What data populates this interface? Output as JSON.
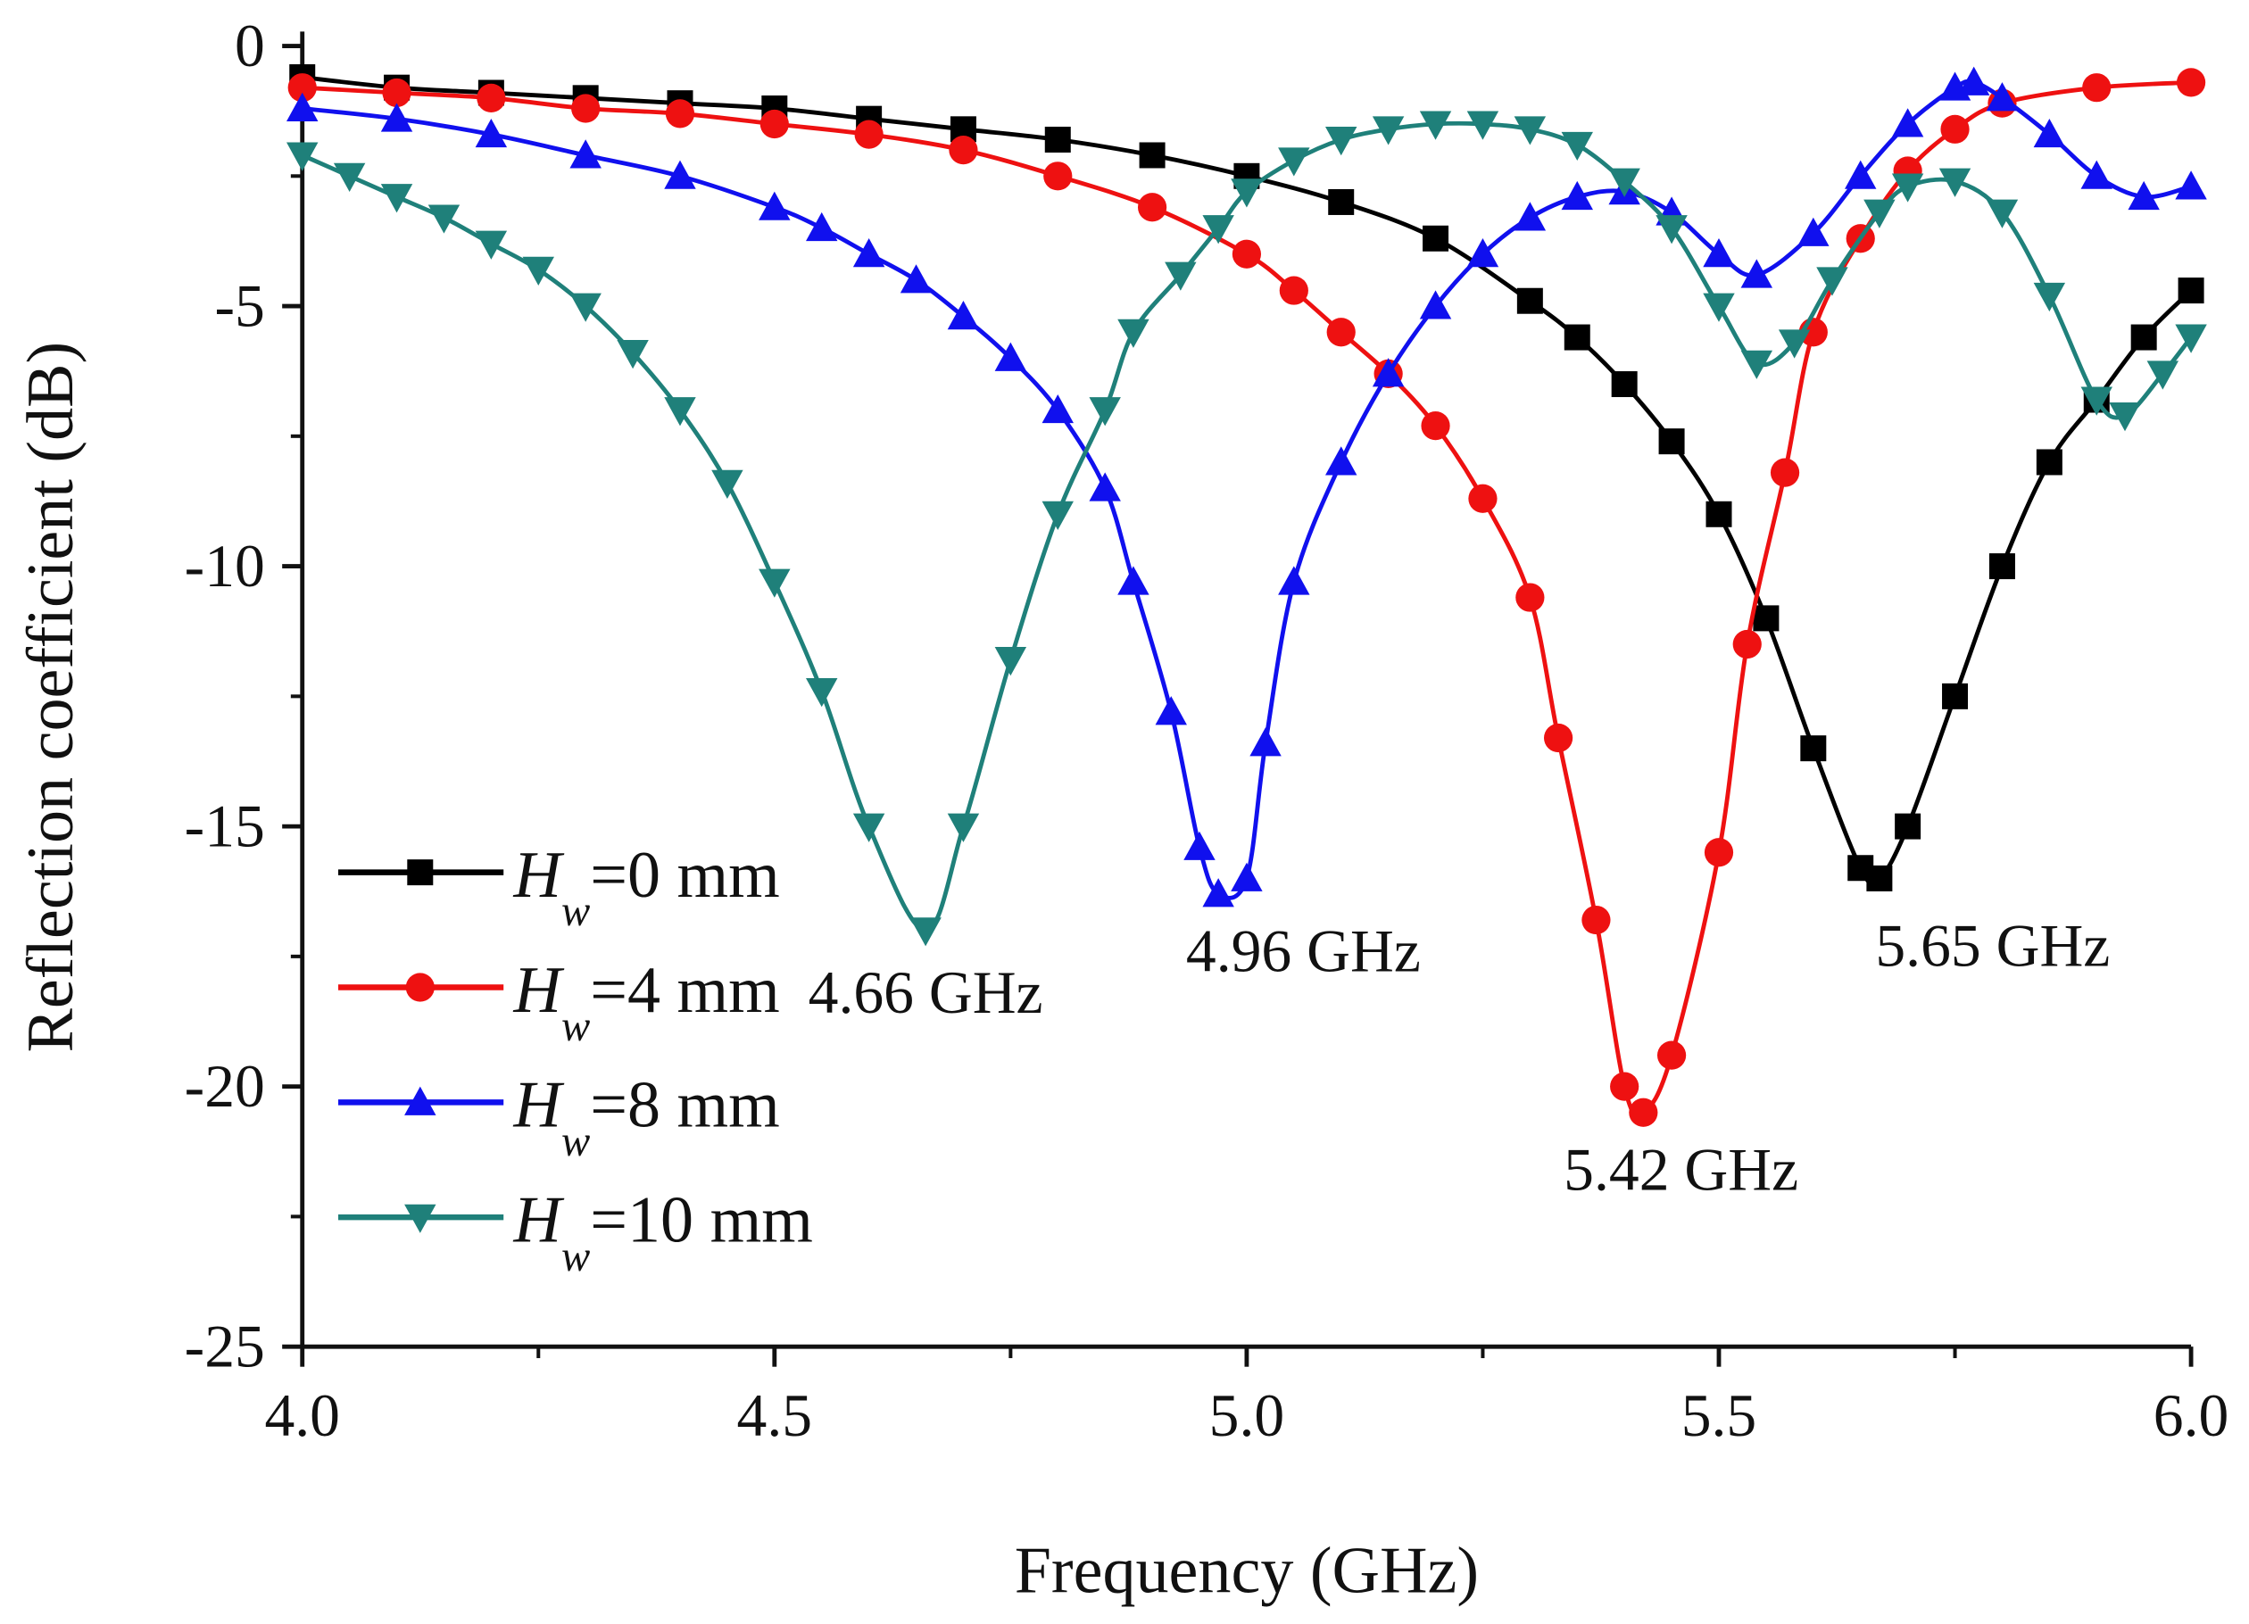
{
  "chart_data": {
    "type": "line",
    "title": "",
    "xlabel": "Frequency (GHz)",
    "ylabel": "Reflection coefficient (dB)",
    "xlim": [
      4.0,
      6.0
    ],
    "ylim": [
      -25,
      0
    ],
    "xticks": [
      "4.0",
      "4.5",
      "5.0",
      "5.5",
      "6.0"
    ],
    "xtick_values": [
      4.0,
      4.5,
      5.0,
      5.5,
      6.0
    ],
    "yticks": [
      "0",
      "-5",
      "-10",
      "-15",
      "-20",
      "-25"
    ],
    "ytick_values": [
      0,
      -5,
      -10,
      -15,
      -20,
      -25
    ],
    "grid": false,
    "legend_position": "bottom-left",
    "series": [
      {
        "name": "Hw=0 mm",
        "legend_var": "H",
        "legend_sub": "w",
        "legend_rest": "=0 mm",
        "color": "#000000",
        "marker": "square",
        "x": [
          4.0,
          4.1,
          4.2,
          4.3,
          4.4,
          4.5,
          4.6,
          4.7,
          4.8,
          4.9,
          5.0,
          5.1,
          5.2,
          5.3,
          5.35,
          5.4,
          5.45,
          5.5,
          5.55,
          5.6,
          5.65,
          5.67,
          5.7,
          5.75,
          5.8,
          5.85,
          5.9,
          5.95,
          6.0
        ],
        "y": [
          -0.6,
          -0.8,
          -0.9,
          -1.0,
          -1.1,
          -1.2,
          -1.4,
          -1.6,
          -1.8,
          -2.1,
          -2.5,
          -3.0,
          -3.7,
          -4.9,
          -5.6,
          -6.5,
          -7.6,
          -9.0,
          -11.0,
          -13.5,
          -15.8,
          -16.0,
          -15.0,
          -12.5,
          -10.0,
          -8.0,
          -6.8,
          -5.6,
          -4.7
        ]
      },
      {
        "name": "Hw=4 mm",
        "legend_var": "H",
        "legend_sub": "w",
        "legend_rest": "=4 mm",
        "color": "#ee1111",
        "marker": "circle",
        "x": [
          4.0,
          4.1,
          4.2,
          4.3,
          4.4,
          4.5,
          4.6,
          4.7,
          4.8,
          4.9,
          5.0,
          5.05,
          5.1,
          5.15,
          5.2,
          5.25,
          5.3,
          5.33,
          5.37,
          5.4,
          5.42,
          5.45,
          5.5,
          5.53,
          5.57,
          5.6,
          5.65,
          5.7,
          5.75,
          5.8,
          5.9,
          6.0
        ],
        "y": [
          -0.8,
          -0.9,
          -1.0,
          -1.2,
          -1.3,
          -1.5,
          -1.7,
          -2.0,
          -2.5,
          -3.1,
          -4.0,
          -4.7,
          -5.5,
          -6.3,
          -7.3,
          -8.7,
          -10.6,
          -13.3,
          -16.8,
          -20.0,
          -20.5,
          -19.4,
          -15.5,
          -11.5,
          -8.2,
          -5.5,
          -3.7,
          -2.4,
          -1.6,
          -1.1,
          -0.8,
          -0.7
        ]
      },
      {
        "name": "Hw=8 mm",
        "legend_var": "H",
        "legend_sub": "w",
        "legend_rest": "=8 mm",
        "color": "#1010ee",
        "marker": "triangle-up",
        "x": [
          4.0,
          4.1,
          4.2,
          4.3,
          4.4,
          4.5,
          4.55,
          4.6,
          4.65,
          4.7,
          4.75,
          4.8,
          4.85,
          4.88,
          4.92,
          4.95,
          4.97,
          5.0,
          5.02,
          5.05,
          5.1,
          5.15,
          5.2,
          5.25,
          5.3,
          5.35,
          5.4,
          5.45,
          5.5,
          5.54,
          5.6,
          5.65,
          5.7,
          5.75,
          5.77,
          5.8,
          5.85,
          5.9,
          5.95,
          6.0
        ],
        "y": [
          -1.2,
          -1.4,
          -1.7,
          -2.1,
          -2.5,
          -3.1,
          -3.5,
          -4.0,
          -4.5,
          -5.2,
          -6.0,
          -7.0,
          -8.5,
          -10.3,
          -12.8,
          -15.4,
          -16.3,
          -16.0,
          -13.4,
          -10.3,
          -8.0,
          -6.3,
          -5.0,
          -4.0,
          -3.3,
          -2.9,
          -2.8,
          -3.2,
          -4.0,
          -4.4,
          -3.6,
          -2.5,
          -1.5,
          -0.8,
          -0.7,
          -1.0,
          -1.7,
          -2.5,
          -2.9,
          -2.7
        ]
      },
      {
        "name": "Hw=10 mm",
        "legend_var": "H",
        "legend_sub": "w",
        "legend_rest": "=10 mm",
        "color": "#1f807a",
        "marker": "triangle-down",
        "x": [
          4.0,
          4.05,
          4.1,
          4.15,
          4.2,
          4.25,
          4.3,
          4.35,
          4.4,
          4.45,
          4.5,
          4.55,
          4.6,
          4.66,
          4.7,
          4.75,
          4.8,
          4.85,
          4.88,
          4.93,
          4.97,
          5.0,
          5.05,
          5.1,
          5.15,
          5.2,
          5.25,
          5.3,
          5.35,
          5.4,
          5.45,
          5.5,
          5.54,
          5.58,
          5.62,
          5.67,
          5.7,
          5.75,
          5.8,
          5.85,
          5.9,
          5.93,
          5.97,
          6.0
        ],
        "y": [
          -2.1,
          -2.5,
          -2.9,
          -3.3,
          -3.8,
          -4.3,
          -5.0,
          -5.9,
          -7.0,
          -8.4,
          -10.3,
          -12.4,
          -15.0,
          -17.0,
          -15.0,
          -11.8,
          -9.0,
          -7.0,
          -5.5,
          -4.4,
          -3.5,
          -2.8,
          -2.2,
          -1.8,
          -1.6,
          -1.5,
          -1.5,
          -1.6,
          -1.9,
          -2.6,
          -3.5,
          -5.0,
          -6.1,
          -5.7,
          -4.5,
          -3.2,
          -2.7,
          -2.6,
          -3.2,
          -4.8,
          -6.8,
          -7.1,
          -6.3,
          -5.6
        ]
      }
    ],
    "annotations": [
      {
        "text": "4.66 GHz",
        "x": 4.66,
        "y": -18.2
      },
      {
        "text": "4.96 GHz",
        "x": 5.06,
        "y": -17.4
      },
      {
        "text": "5.42 GHz",
        "x": 5.46,
        "y": -21.6
      },
      {
        "text": "5.65 GHz",
        "x": 5.79,
        "y": -17.3
      }
    ]
  }
}
